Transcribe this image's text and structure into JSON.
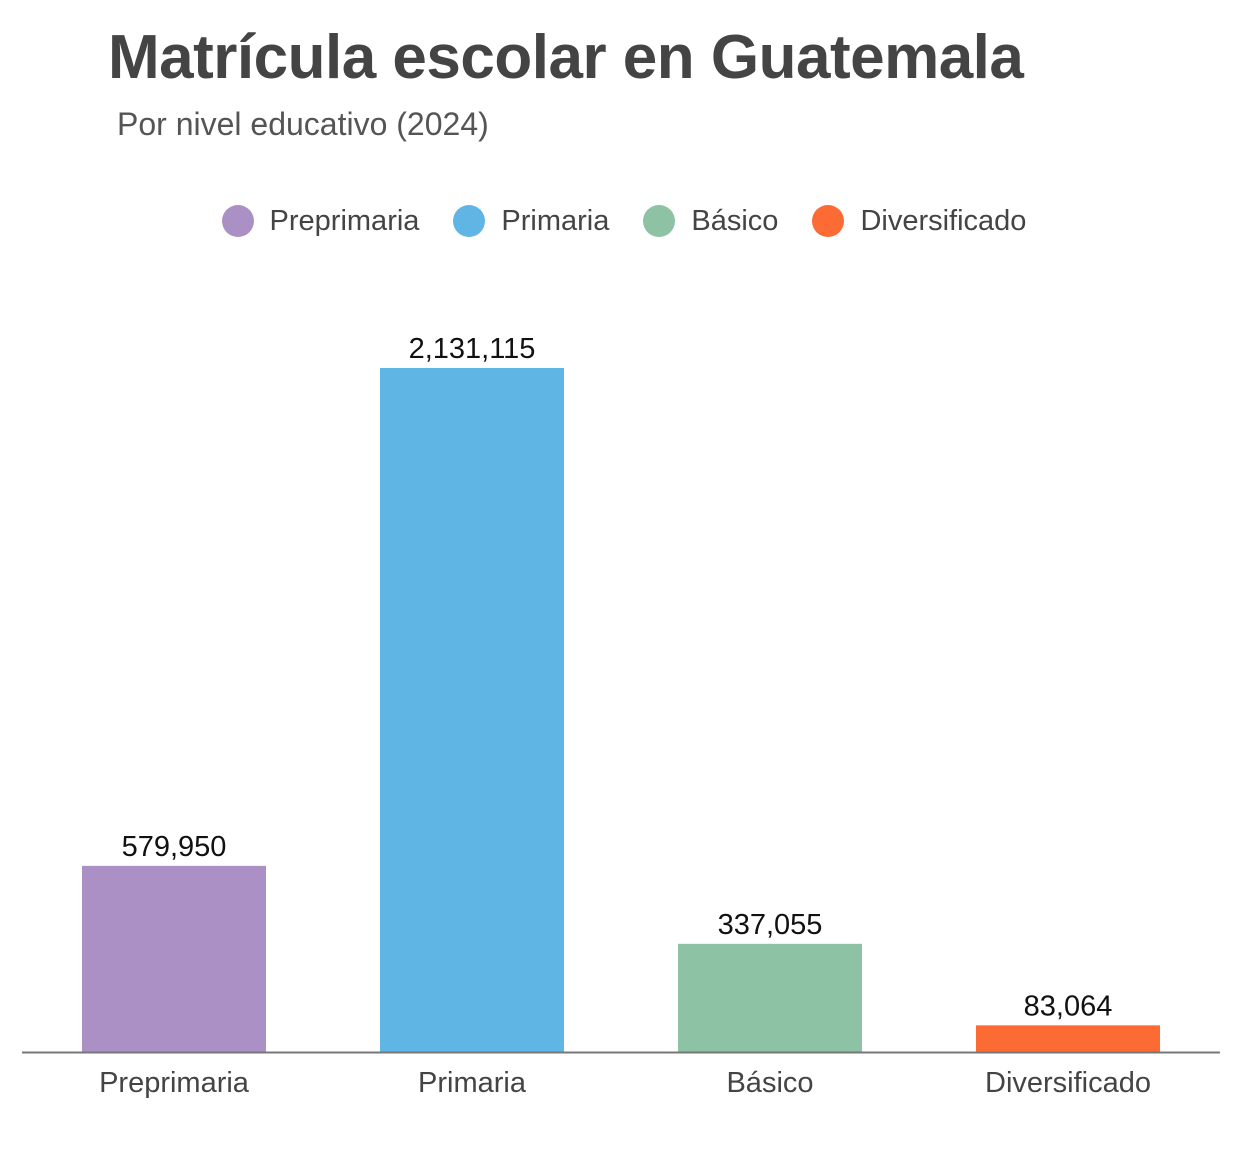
{
  "chart_data": {
    "type": "bar",
    "title": "Matrícula escolar en Guatemala",
    "subtitle": "Por nivel educativo (2024)",
    "categories": [
      "Preprimaria",
      "Primaria",
      "Básico",
      "Diversificado"
    ],
    "values": [
      579950,
      2131115,
      337055,
      83064
    ],
    "value_labels": [
      "579,950",
      "2,131,115",
      "337,055",
      "83,064"
    ],
    "colors": [
      "#ab90c6",
      "#5fb6e4",
      "#8dc2a5",
      "#fd6b35"
    ],
    "legend": [
      {
        "label": "Preprimaria",
        "color": "#ab90c6"
      },
      {
        "label": "Primaria",
        "color": "#5fb6e4"
      },
      {
        "label": "Básico",
        "color": "#8dc2a5"
      },
      {
        "label": "Diversificado",
        "color": "#fd6b35"
      }
    ],
    "legend_position": "top-center",
    "xlabel": "",
    "ylabel": "",
    "ylim": [
      0,
      2131115
    ],
    "grid": false
  }
}
